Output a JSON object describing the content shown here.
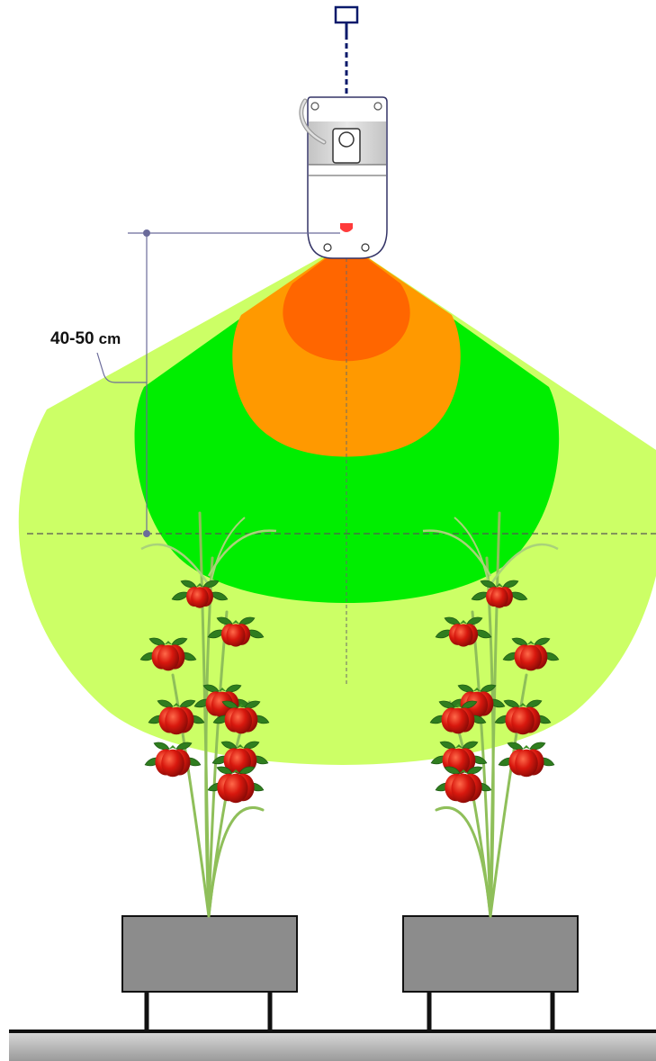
{
  "distance_label": {
    "value": "40-50",
    "unit": "cm"
  },
  "colors": {
    "outer_zone": "#ccff66",
    "middle_zone": "#00ee00",
    "inner_zone": "#ff9900",
    "core_zone": "#ff6600",
    "lamp_housing": "#d4d4d4",
    "hanger": "#0a1a6b",
    "dimension_line": "#6b6b9a",
    "planter": "#8c8c8c",
    "stem": "#8fbf5a",
    "tomato": "#d11a12",
    "leaf": "#2f7d1f",
    "floor": "#111111"
  },
  "icons": {
    "lamp": "grow-lamp-icon",
    "hanger": "hanger-hook-icon",
    "plant": "tomato-plant-icon",
    "planter": "planter-box-icon"
  }
}
